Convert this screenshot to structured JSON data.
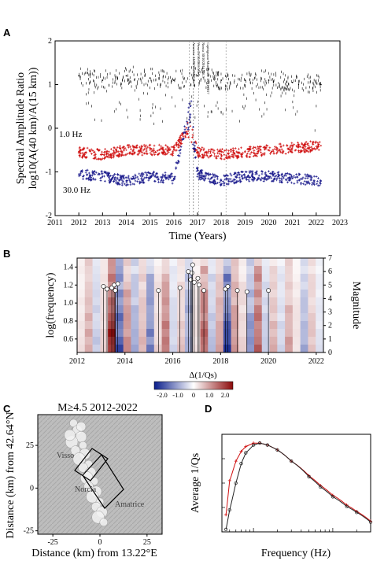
{
  "panels": {
    "a": {
      "letter": "A"
    },
    "b": {
      "letter": "B"
    },
    "c": {
      "letter": "C"
    },
    "d": {
      "letter": "D"
    }
  },
  "chart_data": [
    {
      "panel": "A",
      "type": "scatter",
      "xlabel": "Time (Years)",
      "ylabel_line1": "Spectral Amplitude Ratio",
      "ylabel_line2": "log10(A(40 km)/A(15 km))",
      "xlim": [
        2011,
        2023
      ],
      "ylim": [
        -2,
        2
      ],
      "xticks": [
        "2011",
        "2012",
        "2013",
        "2014",
        "2015",
        "2016",
        "2017",
        "2018",
        "2019",
        "2020",
        "2021",
        "2022",
        "2023"
      ],
      "yticks": [
        "2",
        "1",
        "0",
        "-1",
        "-2"
      ],
      "event_labels": [
        "Amatrice 24/08/2016 M6.0",
        "Visso 26/10/2016 M5.9",
        "Norcia 30/10/2016 M6.5",
        "Capitignano-Montereale 18/01/2017"
      ],
      "event_times": [
        2016.65,
        2016.82,
        2016.83,
        2017.05,
        2018.2
      ],
      "series": [
        {
          "name": "1.0 Hz",
          "color": "#d01010",
          "x": [
            2012.0,
            2013.0,
            2014.0,
            2015.0,
            2016.0,
            2016.7,
            2017.0,
            2018.0,
            2019.0,
            2020.0,
            2021.0,
            2022.2
          ],
          "y": [
            -0.55,
            -0.6,
            -0.5,
            -0.5,
            -0.5,
            0.05,
            -0.55,
            -0.6,
            -0.55,
            -0.5,
            -0.45,
            -0.4
          ]
        },
        {
          "name": "30.0 Hz",
          "color": "#1a1a8c",
          "x": [
            2012.0,
            2013.0,
            2014.0,
            2015.0,
            2016.0,
            2016.7,
            2017.0,
            2018.0,
            2019.0,
            2020.0,
            2021.0,
            2022.2
          ],
          "y": [
            -1.05,
            -1.1,
            -1.2,
            -1.1,
            -1.15,
            0.5,
            -1.05,
            -1.2,
            -1.1,
            -1.1,
            -1.15,
            -1.2
          ]
        },
        {
          "name": "",
          "color": "#000000",
          "x": [
            2012.0,
            2013.0,
            2014.0,
            2015.0,
            2016.0,
            2017.0,
            2018.0,
            2019.0,
            2020.0,
            2021.0,
            2022.2
          ],
          "y": [
            1.2,
            1.1,
            1.2,
            1.15,
            1.1,
            1.2,
            1.1,
            1.1,
            1.1,
            1.05,
            1.0
          ]
        }
      ]
    },
    {
      "panel": "B",
      "type": "heatmap",
      "ylabel": "log(frequency)",
      "y2label": "Magnitude",
      "xlim": [
        2012,
        2022.3
      ],
      "ylim": [
        0.45,
        1.5
      ],
      "y2lim": [
        0,
        7
      ],
      "xticks": [
        "2012",
        "2014",
        "2016",
        "2018",
        "2020",
        "2022"
      ],
      "yticks": [
        "1.4",
        "1.2",
        "1.0",
        "0.8",
        "0.6"
      ],
      "y2ticks": [
        "7",
        "6",
        "5",
        "4",
        "3",
        "2",
        "1",
        "0"
      ],
      "colorbar": {
        "label": "Δ(1/Qs)",
        "ticks": [
          "-2.0",
          "-1.0",
          "0",
          "1.0",
          "2.0"
        ],
        "colors": [
          "#0a1e8c",
          "#ffffff",
          "#8c0a0a"
        ]
      },
      "columns": [
        0.2,
        0.6,
        -0.4,
        0.3,
        1.5,
        -1.2,
        0.8,
        -0.6,
        0.5,
        -0.9,
        0.3,
        0.9,
        -0.3,
        0.4,
        -0.7,
        0.2,
        1.0,
        -0.5,
        0.6,
        -1.5,
        0.7,
        0.3,
        -0.8,
        1.2,
        -0.4,
        0.5,
        -0.3,
        0.6,
        0.2,
        -0.6,
        0.4,
        -0.2
      ],
      "magnitudes": [
        {
          "t": 2013.1,
          "m": 4.9
        },
        {
          "t": 2013.25,
          "m": 4.7
        },
        {
          "t": 2013.45,
          "m": 4.8
        },
        {
          "t": 2013.55,
          "m": 5.0
        },
        {
          "t": 2013.6,
          "m": 4.6
        },
        {
          "t": 2013.7,
          "m": 5.1
        },
        {
          "t": 2015.4,
          "m": 4.6
        },
        {
          "t": 2016.3,
          "m": 4.8
        },
        {
          "t": 2016.65,
          "m": 6.0
        },
        {
          "t": 2016.75,
          "m": 5.4
        },
        {
          "t": 2016.8,
          "m": 5.9
        },
        {
          "t": 2016.83,
          "m": 6.5
        },
        {
          "t": 2016.9,
          "m": 5.2
        },
        {
          "t": 2017.05,
          "m": 5.5
        },
        {
          "t": 2017.1,
          "m": 5.0
        },
        {
          "t": 2017.3,
          "m": 4.6
        },
        {
          "t": 2018.2,
          "m": 4.7
        },
        {
          "t": 2018.3,
          "m": 4.9
        },
        {
          "t": 2018.7,
          "m": 4.6
        },
        {
          "t": 2019.1,
          "m": 4.5
        },
        {
          "t": 2020.0,
          "m": 4.6
        }
      ]
    },
    {
      "panel": "C",
      "type": "scatter",
      "title": "M≥4.5 2012-2022",
      "xlabel": "Distance (km) from 13.22°E",
      "ylabel_line1": "Distance (km) from 42.64°N",
      "xlim": [
        -33,
        33
      ],
      "ylim": [
        -27,
        43
      ],
      "xticks": [
        "-25",
        "0",
        "25"
      ],
      "yticks": [
        "25",
        "0",
        "-25"
      ],
      "place_labels": [
        "Visso",
        "Norcia",
        "Amatrice"
      ],
      "epicenters": [
        [
          -14,
          38
        ],
        [
          -12,
          34
        ],
        [
          -10,
          30
        ],
        [
          -15,
          27
        ],
        [
          -9,
          25
        ],
        [
          -13,
          22
        ],
        [
          -8,
          20
        ],
        [
          -11,
          17
        ],
        [
          -6,
          14
        ],
        [
          -9,
          12
        ],
        [
          -5,
          9
        ],
        [
          -7,
          6
        ],
        [
          -3,
          4
        ],
        [
          -6,
          1
        ],
        [
          -2,
          -2
        ],
        [
          -4,
          -5
        ],
        [
          0,
          -8
        ],
        [
          -2,
          -11
        ],
        [
          1,
          -14
        ],
        [
          -1,
          -17
        ],
        [
          2,
          -20
        ],
        [
          -10,
          36
        ],
        [
          -16,
          31
        ]
      ]
    },
    {
      "panel": "D",
      "type": "line",
      "xlabel": "Frequency (Hz)",
      "ylabel": "Average 1/Qs",
      "xscale": "log",
      "xlim": [
        0.4,
        30
      ],
      "ylim": [
        0,
        2
      ],
      "series": [
        {
          "name": "",
          "color": "#d01010",
          "x": [
            0.45,
            0.5,
            0.6,
            0.7,
            0.8,
            1.0,
            1.2,
            1.5,
            2.0,
            3.0,
            5.0,
            7.0,
            10.0,
            15.0,
            20.0,
            30.0
          ],
          "y": [
            0.35,
            1.05,
            1.45,
            1.65,
            1.75,
            1.82,
            1.82,
            1.78,
            1.68,
            1.45,
            1.15,
            0.95,
            0.75,
            0.55,
            0.42,
            0.22
          ]
        },
        {
          "name": "",
          "color": "#222222",
          "x": [
            0.45,
            0.5,
            0.6,
            0.7,
            0.8,
            1.0,
            1.2,
            1.5,
            2.0,
            3.0,
            5.0,
            7.0,
            10.0,
            15.0,
            20.0,
            30.0
          ],
          "y": [
            0.05,
            0.45,
            1.0,
            1.4,
            1.62,
            1.78,
            1.82,
            1.78,
            1.68,
            1.45,
            1.13,
            0.92,
            0.72,
            0.52,
            0.4,
            0.2
          ]
        }
      ]
    }
  ]
}
